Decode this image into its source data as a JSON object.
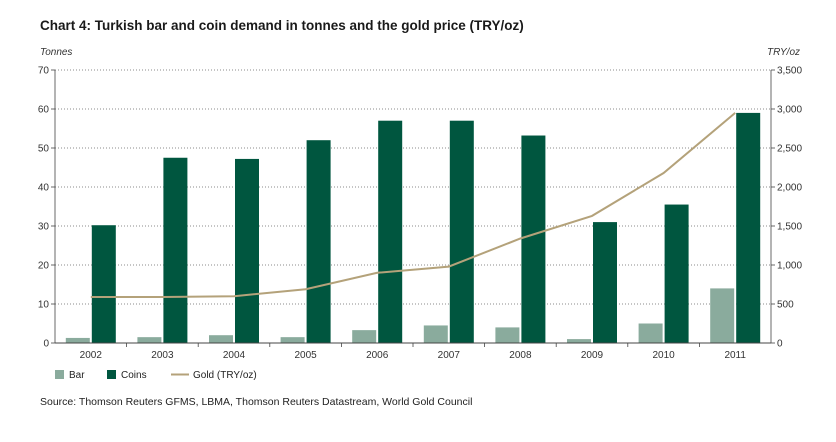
{
  "chart_data": {
    "type": "bar",
    "title": "Chart 4: Turkish bar and coin demand in tonnes and the gold price (TRY/oz)",
    "ylabel": "Tonnes",
    "y2label": "TRY/oz",
    "ylim": [
      0,
      70
    ],
    "y2lim": [
      0,
      3500
    ],
    "yticks": [
      "0",
      "10",
      "20",
      "30",
      "40",
      "50",
      "60",
      "70"
    ],
    "y2ticks": [
      "0",
      "500",
      "1,000",
      "1,500",
      "2,000",
      "2,500",
      "3,000",
      "3,500"
    ],
    "categories": [
      "2002",
      "2003",
      "2004",
      "2005",
      "2006",
      "2007",
      "2008",
      "2009",
      "2010",
      "2011"
    ],
    "series": [
      {
        "name": "Bar",
        "type": "bar",
        "axis": "left",
        "color": "#8aab9d",
        "values": [
          1.3,
          1.5,
          2.0,
          1.5,
          3.3,
          4.5,
          4.0,
          1.0,
          5.0,
          14.0
        ]
      },
      {
        "name": "Coins",
        "type": "bar",
        "axis": "left",
        "color": "#00563f",
        "values": [
          30.2,
          47.5,
          47.2,
          52.0,
          57.0,
          57.0,
          53.2,
          31.0,
          35.5,
          59.0
        ]
      },
      {
        "name": "Gold (TRY/oz)",
        "type": "line",
        "axis": "right",
        "color": "#b4a27a",
        "values": [
          590,
          590,
          600,
          690,
          900,
          980,
          1340,
          1630,
          2180,
          2950
        ]
      }
    ],
    "legend": [
      "Bar",
      "Coins",
      "Gold (TRY/oz)"
    ],
    "legend_position": "bottom-left",
    "grid": true
  },
  "source": "Source: Thomson Reuters GFMS, LBMA, Thomson Reuters Datastream, World Gold Council"
}
